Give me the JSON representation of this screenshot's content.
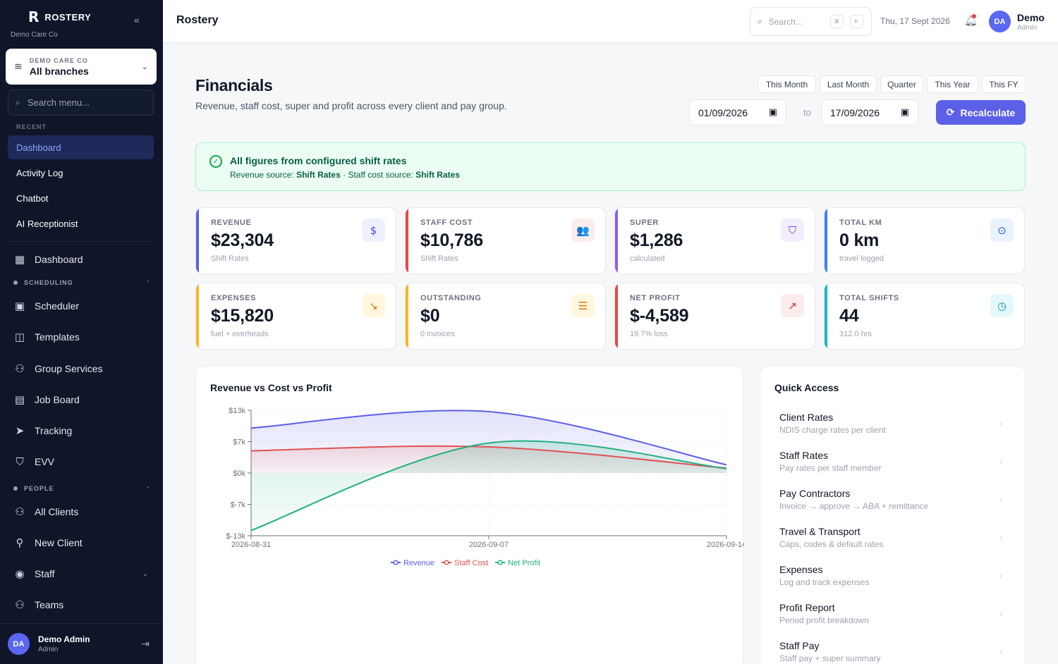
{
  "sidebar": {
    "brand": "ROSTERY",
    "org_label": "Demo Care Co",
    "branch": {
      "top": "DEMO CARE CO",
      "main": "All branches"
    },
    "search_placeholder": "Search menu...",
    "recent_label": "RECENT",
    "recent": [
      "Dashboard",
      "Activity Log",
      "Chatbot",
      "AI Receptionist"
    ],
    "nav_dashboard": "Dashboard",
    "section_scheduling": "SCHEDULING",
    "scheduling": [
      "Scheduler",
      "Templates",
      "Group Services",
      "Job Board",
      "Tracking",
      "EVV"
    ],
    "section_people": "PEOPLE",
    "people": [
      "All Clients",
      "New Client",
      "Staff",
      "Teams"
    ],
    "user": {
      "initials": "DA",
      "name": "Demo Admin",
      "role": "Admin"
    }
  },
  "topbar": {
    "title": "Rostery",
    "search_placeholder": "Search...",
    "kbd1": "⌘",
    "kbd2": "K",
    "date": "Thu, 17 Sept 2026",
    "user": {
      "initials": "DA",
      "name": "Demo",
      "role": "Admin"
    }
  },
  "header": {
    "title": "Financials",
    "subtitle": "Revenue, staff cost, super and profit across every client and pay group.",
    "periods": [
      "This Month",
      "Last Month",
      "Quarter",
      "This Year",
      "This FY"
    ],
    "date_from": "01/09/2026",
    "to_label": "to",
    "date_to": "17/09/2026",
    "recalc_label": "Recalculate"
  },
  "banner": {
    "title": "All figures from configured shift rates",
    "rev_prefix": "Revenue source:",
    "rev_source": "Shift Rates",
    "sep": " · ",
    "cost_prefix": "Staff cost source:",
    "cost_source": "Shift Rates"
  },
  "stats": [
    {
      "label": "REVENUE",
      "value": "$23,304",
      "note": "Shift Rates",
      "icon": "dollar-icon",
      "glyph": "$",
      "accent": "#5b60e8",
      "badge_bg": "#eef0ff",
      "badge_fg": "#4f46e5"
    },
    {
      "label": "STAFF COST",
      "value": "$10,786",
      "note": "Shift Rates",
      "icon": "users-icon",
      "glyph": "👥",
      "accent": "#ef4444",
      "badge_bg": "#fdecec",
      "badge_fg": "#dc2626"
    },
    {
      "label": "SUPER",
      "value": "$1,286",
      "note": "calculated",
      "icon": "shield-icon",
      "glyph": "⛉",
      "accent": "#8b5cf6",
      "badge_bg": "#f3eefe",
      "badge_fg": "#7c3aed"
    },
    {
      "label": "TOTAL KM",
      "value": "0 km",
      "note": "travel logged",
      "icon": "map-pin-icon",
      "glyph": "⊙",
      "accent": "#3b82f6",
      "badge_bg": "#eaf2ff",
      "badge_fg": "#2563eb"
    },
    {
      "label": "EXPENSES",
      "value": "$15,820",
      "note": "fuel + overheads",
      "icon": "trend-down-icon",
      "glyph": "↘",
      "accent": "#f5b81e",
      "badge_bg": "#fff7e0",
      "badge_fg": "#d97706"
    },
    {
      "label": "OUTSTANDING",
      "value": "$0",
      "note": "0 invoices",
      "icon": "file-icon",
      "glyph": "☰",
      "accent": "#f5b81e",
      "badge_bg": "#fff7e0",
      "badge_fg": "#d97706"
    },
    {
      "label": "NET PROFIT",
      "value": "$-4,589",
      "note": "19.7% loss",
      "icon": "trend-up-icon",
      "glyph": "↗",
      "accent": "#ef4444",
      "badge_bg": "#fdecec",
      "badge_fg": "#dc2626"
    },
    {
      "label": "TOTAL SHIFTS",
      "value": "44",
      "note": "312.0 hrs",
      "icon": "clock-icon",
      "glyph": "◷",
      "accent": "#14b8c6",
      "badge_bg": "#e6f8fa",
      "badge_fg": "#0891b2"
    }
  ],
  "chart_title": "Revenue vs Cost vs Profit",
  "chart_data": {
    "type": "area",
    "title": "Revenue vs Cost vs Profit",
    "x": [
      "2026-08-31",
      "2026-09-07",
      "2026-09-14"
    ],
    "ylim": [
      -13,
      13
    ],
    "y_unit": "$k",
    "y_ticks": [
      "$13k",
      "$7k",
      "$0k",
      "$-7k",
      "$-13k"
    ],
    "y_tick_values": [
      13,
      6.5,
      0,
      -6.5,
      -13
    ],
    "series": [
      {
        "name": "Revenue",
        "color": "#5b60e8",
        "values": [
          9.3,
          12.7,
          1.7
        ]
      },
      {
        "name": "Staff Cost",
        "color": "#e05252",
        "values": [
          4.6,
          5.4,
          1.0
        ]
      },
      {
        "name": "Net Profit",
        "color": "#22b07d",
        "values": [
          -11.9,
          6.2,
          0.9
        ]
      }
    ],
    "legend_position": "bottom",
    "grid": true
  },
  "quick_access": {
    "title": "Quick Access",
    "items": [
      {
        "title": "Client Rates",
        "sub": "NDIS charge rates per client"
      },
      {
        "title": "Staff Rates",
        "sub": "Pay rates per staff member"
      },
      {
        "title": "Pay Contractors",
        "sub": "Invoice → approve → ABA + remittance"
      },
      {
        "title": "Travel & Transport",
        "sub": "Caps, codes & default rates"
      },
      {
        "title": "Expenses",
        "sub": "Log and track expenses"
      },
      {
        "title": "Profit Report",
        "sub": "Period profit breakdown"
      },
      {
        "title": "Staff Pay",
        "sub": "Staff pay + super summary"
      }
    ]
  }
}
